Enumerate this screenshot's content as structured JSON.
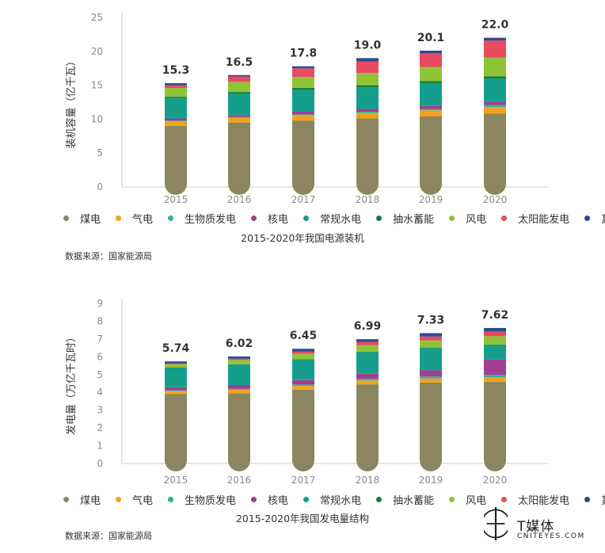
{
  "chart_data": [
    {
      "type": "bar",
      "title": "2015-2020年我国电源装机",
      "ylabel": "装机容量（亿千瓦）",
      "ylim": [
        0,
        25
      ],
      "yticks": [
        0,
        5,
        10,
        15,
        20,
        25
      ],
      "categories": [
        "2015",
        "2016",
        "2017",
        "2018",
        "2019",
        "2020"
      ],
      "totals_labels": [
        "15.3",
        "16.5",
        "17.8",
        "19.0",
        "20.1",
        "22.0"
      ],
      "series": [
        {
          "name": "煤电",
          "color": "#8a8660",
          "values": [
            9.0,
            9.5,
            9.8,
            10.1,
            10.4,
            10.8
          ]
        },
        {
          "name": "气电",
          "color": "#f2a21c",
          "values": [
            0.7,
            0.7,
            0.8,
            0.8,
            0.9,
            1.0
          ]
        },
        {
          "name": "生物质发电",
          "color": "#2fb39b",
          "values": [
            0.1,
            0.1,
            0.1,
            0.2,
            0.2,
            0.3
          ]
        },
        {
          "name": "核电",
          "color": "#a23d90",
          "values": [
            0.3,
            0.3,
            0.4,
            0.4,
            0.5,
            0.5
          ]
        },
        {
          "name": "常规水电",
          "color": "#169e8c",
          "values": [
            3.0,
            3.1,
            3.2,
            3.2,
            3.3,
            3.4
          ]
        },
        {
          "name": "抽水蓄能",
          "color": "#0f7f3f",
          "values": [
            0.2,
            0.3,
            0.3,
            0.3,
            0.3,
            0.3
          ]
        },
        {
          "name": "风电",
          "color": "#8fc437",
          "values": [
            1.3,
            1.5,
            1.6,
            1.8,
            2.1,
            2.8
          ]
        },
        {
          "name": "太阳能发电",
          "color": "#e84a5f",
          "values": [
            0.4,
            0.8,
            1.3,
            1.7,
            2.0,
            2.5
          ]
        },
        {
          "name": "其他",
          "color": "#2d4b8e",
          "values": [
            0.3,
            0.2,
            0.3,
            0.5,
            0.4,
            0.4
          ]
        }
      ],
      "legend_position": "bottom",
      "source": "数据来源：国家能源局"
    },
    {
      "type": "bar",
      "title": "2015-2020年我国发电量结构",
      "ylabel": "发电量（万亿千瓦时）",
      "ylim": [
        0,
        9
      ],
      "yticks": [
        0,
        1,
        2,
        3,
        4,
        5,
        6,
        7,
        8,
        9
      ],
      "categories": [
        "2015",
        "2016",
        "2017",
        "2018",
        "2019",
        "2020"
      ],
      "totals_labels": [
        "5.74",
        "6.02",
        "6.45",
        "6.99",
        "7.33",
        "7.62"
      ],
      "series": [
        {
          "name": "煤电",
          "color": "#8a8660",
          "values": [
            3.9,
            3.95,
            4.15,
            4.45,
            4.55,
            4.6
          ]
        },
        {
          "name": "气电",
          "color": "#f2a21c",
          "values": [
            0.17,
            0.19,
            0.21,
            0.22,
            0.23,
            0.25
          ]
        },
        {
          "name": "生物质发电",
          "color": "#2fb39b",
          "values": [
            0.05,
            0.06,
            0.08,
            0.09,
            0.11,
            0.13
          ]
        },
        {
          "name": "核电",
          "color": "#a23d90",
          "values": [
            0.17,
            0.21,
            0.25,
            0.29,
            0.35,
            0.87
          ]
        },
        {
          "name": "常规水电",
          "color": "#169e8c",
          "values": [
            1.08,
            1.14,
            1.15,
            1.2,
            1.25,
            0.8
          ]
        },
        {
          "name": "抽水蓄能",
          "color": "#0f7f3f",
          "values": [
            0.02,
            0.03,
            0.03,
            0.03,
            0.03,
            0.04
          ]
        },
        {
          "name": "风电",
          "color": "#8fc437",
          "values": [
            0.19,
            0.24,
            0.3,
            0.37,
            0.4,
            0.47
          ]
        },
        {
          "name": "太阳能发电",
          "color": "#e84a5f",
          "values": [
            0.04,
            0.07,
            0.12,
            0.18,
            0.22,
            0.26
          ]
        },
        {
          "name": "其他",
          "color": "#2d4b8e",
          "values": [
            0.12,
            0.13,
            0.16,
            0.16,
            0.19,
            0.2
          ]
        }
      ],
      "legend_position": "bottom",
      "source": "数据来源：国家能源局"
    }
  ],
  "watermark": {
    "brand": "T媒体",
    "sub": "CNITEYES.COM",
    "tm": "TM"
  }
}
